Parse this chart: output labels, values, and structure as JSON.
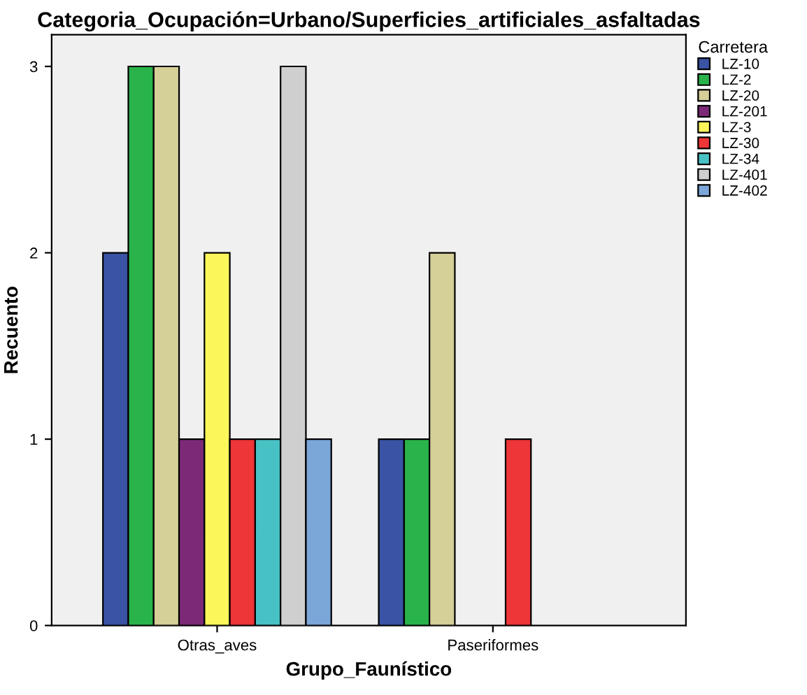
{
  "chart_data": {
    "type": "bar",
    "title": "Categoria_Ocupación=Urbano/Superficies_artificiales_asfaltadas",
    "xlabel": "Grupo_Faunístico",
    "ylabel": "Recuento",
    "legend_title": "Carretera",
    "legend": "right",
    "grid": false,
    "categories": [
      "Otras_aves",
      "Paseriformes"
    ],
    "ylim": [
      0,
      3.17
    ],
    "yticks": [
      0,
      1,
      2,
      3
    ],
    "series": [
      {
        "name": "LZ-10",
        "color": "#3a53a4",
        "values": [
          2,
          1
        ]
      },
      {
        "name": "LZ-2",
        "color": "#2ab34a",
        "values": [
          3,
          1
        ]
      },
      {
        "name": "LZ-20",
        "color": "#d5cf98",
        "values": [
          3,
          2
        ]
      },
      {
        "name": "LZ-201",
        "color": "#7c2a77",
        "values": [
          1,
          null
        ]
      },
      {
        "name": "LZ-3",
        "color": "#fbf65a",
        "values": [
          2,
          null
        ]
      },
      {
        "name": "LZ-30",
        "color": "#ee3538",
        "values": [
          1,
          1
        ]
      },
      {
        "name": "LZ-34",
        "color": "#48c1c4",
        "values": [
          1,
          null
        ]
      },
      {
        "name": "LZ-401",
        "color": "#cfcfcf",
        "values": [
          3,
          null
        ]
      },
      {
        "name": "LZ-402",
        "color": "#7aa6d8",
        "values": [
          1,
          null
        ]
      }
    ]
  }
}
